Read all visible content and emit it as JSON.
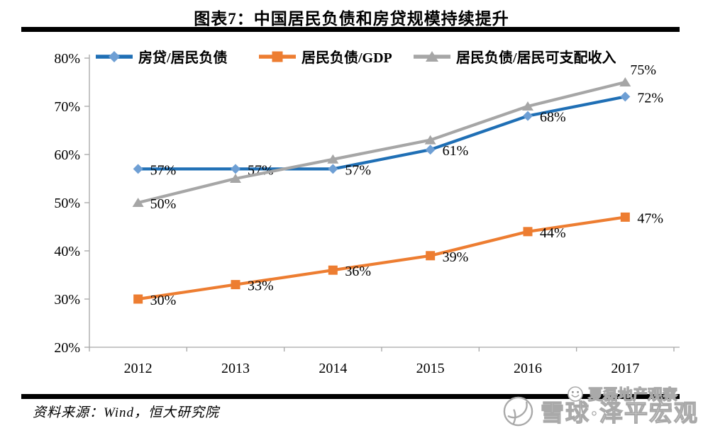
{
  "title": "图表7：中国居民负债和房贷规模持续提升",
  "source": "资料来源：Wind，恒大研究院",
  "watermarks": {
    "top": "夏磊地产观察",
    "bottom": "雪球·泽平宏观"
  },
  "chart_data": {
    "type": "line",
    "categories": [
      "2012",
      "2013",
      "2014",
      "2015",
      "2016",
      "2017"
    ],
    "ylim": [
      20,
      80
    ],
    "ytick_labels": [
      "20%",
      "30%",
      "40%",
      "50%",
      "60%",
      "70%",
      "80%"
    ],
    "grid": false,
    "legend_position": "top",
    "axis_color": "#a6a6a6",
    "label_color": "#000000",
    "series": [
      {
        "name": "房贷/居民负债",
        "marker": "diamond",
        "line_color": "#1f6fb5",
        "marker_color": "#6e9fd4",
        "values": [
          57,
          57,
          57,
          61,
          68,
          72
        ],
        "labels": [
          "57%",
          "57%",
          "57%",
          "61%",
          "68%",
          "72%"
        ],
        "label_pos": [
          "right",
          "right",
          "right",
          "right",
          "right",
          "right"
        ]
      },
      {
        "name": "居民负债/GDP",
        "marker": "square",
        "line_color": "#ed7d31",
        "marker_color": "#ed7d31",
        "values": [
          30,
          33,
          36,
          39,
          44,
          47
        ],
        "labels": [
          "30%",
          "33%",
          "36%",
          "39%",
          "44%",
          "47%"
        ],
        "label_pos": [
          "right",
          "right",
          "right",
          "right",
          "right",
          "right"
        ]
      },
      {
        "name": "居民负债/居民可支配收入",
        "marker": "triangle",
        "line_color": "#a6a6a6",
        "marker_color": "#a6a6a6",
        "values": [
          50,
          55,
          59,
          63,
          70,
          75
        ],
        "labels": [
          "50%",
          null,
          null,
          null,
          null,
          "75%"
        ],
        "label_pos": [
          "right",
          null,
          null,
          null,
          null,
          "above"
        ]
      }
    ]
  }
}
